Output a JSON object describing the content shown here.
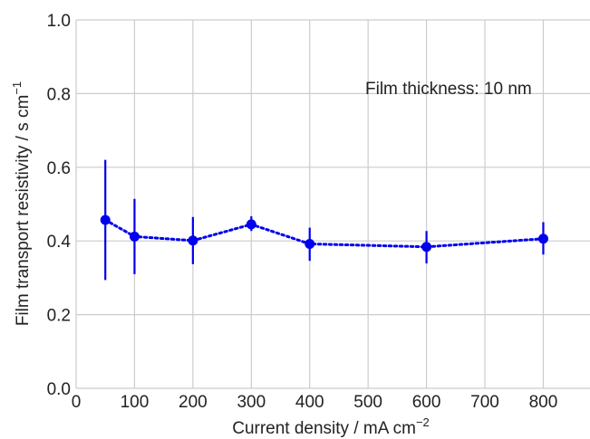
{
  "chart_data": {
    "type": "scatter",
    "title": "",
    "xlabel": "Current density / mA cm",
    "xlabel_sup": "−2",
    "ylabel": "Film transport resistivity / s cm",
    "ylabel_sup": "−1",
    "xlim": [
      0,
      880
    ],
    "ylim": [
      0.0,
      1.0
    ],
    "x_ticks": [
      0,
      100,
      200,
      300,
      400,
      500,
      600,
      700,
      800
    ],
    "x_tick_labels": [
      "0",
      "100",
      "200",
      "300",
      "400",
      "500",
      "600",
      "700",
      "800"
    ],
    "y_ticks": [
      0.0,
      0.2,
      0.4,
      0.6,
      0.8,
      1.0
    ],
    "y_tick_labels": [
      "0.0",
      "0.2",
      "0.4",
      "0.6",
      "0.8",
      "1.0"
    ],
    "grid": true,
    "annotation": "Film thickness: 10 nm",
    "line_style": "dotted",
    "color": "#0000ee",
    "series": [
      {
        "x": [
          50,
          100,
          200,
          300,
          400,
          600,
          800
        ],
        "y": [
          0.457,
          0.412,
          0.401,
          0.445,
          0.392,
          0.384,
          0.406
        ],
        "err_low": [
          0.163,
          0.102,
          0.064,
          0.018,
          0.046,
          0.045,
          0.043
        ],
        "err_high": [
          0.163,
          0.102,
          0.064,
          0.022,
          0.044,
          0.043,
          0.045
        ]
      }
    ]
  }
}
